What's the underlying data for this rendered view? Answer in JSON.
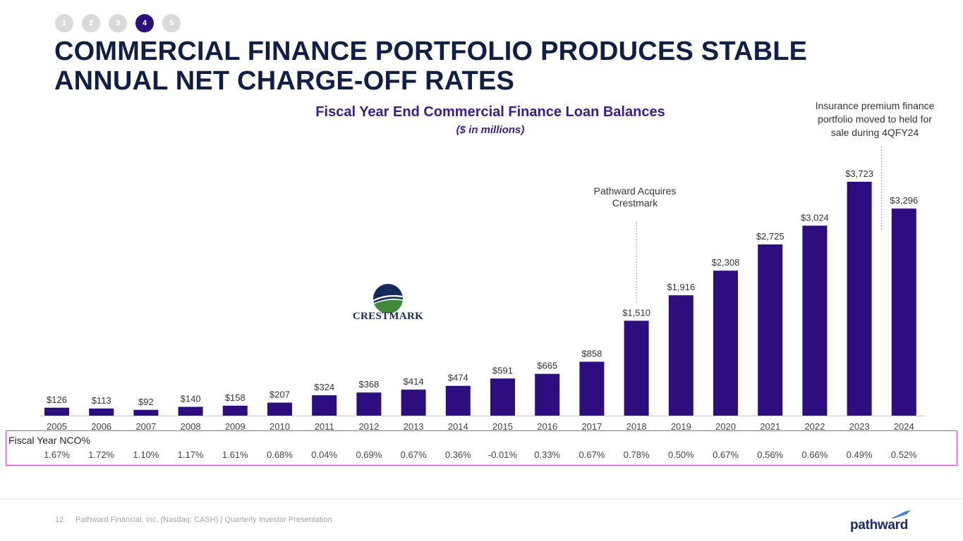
{
  "nav": {
    "steps": [
      "1",
      "2",
      "3",
      "4",
      "5"
    ],
    "active_index": 3
  },
  "slide": {
    "title": "COMMERCIAL FINANCE PORTFOLIO PRODUCES STABLE ANNUAL NET CHARGE-OFF RATES"
  },
  "chart_data": {
    "type": "bar",
    "title": "Fiscal Year End Commercial Finance Loan Balances",
    "subtitle": "($ in millions)",
    "categories": [
      "2005",
      "2006",
      "2007",
      "2008",
      "2009",
      "2010",
      "2011",
      "2012",
      "2013",
      "2014",
      "2015",
      "2016",
      "2017",
      "2018",
      "2019",
      "2020",
      "2021",
      "2022",
      "2023",
      "2024"
    ],
    "values": [
      126,
      113,
      92,
      140,
      158,
      207,
      324,
      368,
      414,
      474,
      591,
      665,
      858,
      1510,
      1916,
      2308,
      2725,
      3024,
      3723,
      3296
    ],
    "value_labels": [
      "$126",
      "$113",
      "$92",
      "$140",
      "$158",
      "$207",
      "$324",
      "$368",
      "$414",
      "$474",
      "$591",
      "$665",
      "$858",
      "$1,510",
      "$1,916",
      "$2,308",
      "$2,725",
      "$3,024",
      "$3,723",
      "$3,296"
    ],
    "ylim": [
      0,
      3723
    ],
    "grid": false,
    "bar_color": "#2e0d7e",
    "annotations": [
      {
        "text_lines": [
          "Pathward Acquires",
          "Crestmark"
        ],
        "category": "2018"
      },
      {
        "text_lines": [
          "Insurance premium finance",
          "portfolio moved to held for",
          "sale during 4QFY24"
        ],
        "category": "2023/2024"
      }
    ],
    "nco": {
      "label": "Fiscal Year NCO%",
      "values": [
        "1.67%",
        "1.72%",
        "1.10%",
        "1.17%",
        "1.61%",
        "0.68%",
        "0.04%",
        "0.69%",
        "0.67%",
        "0.36%",
        "-0.01%",
        "0.33%",
        "0.67%",
        "0.78%",
        "0.50%",
        "0.67%",
        "0.56%",
        "0.66%",
        "0.49%",
        "0.52%"
      ]
    }
  },
  "crestmark_logo": {
    "text": "CRESTMARK"
  },
  "footer": {
    "page_number": "12",
    "text": "Pathward Financial, Inc. (Nasdaq: CASH) | Quarterly Investor Presentation",
    "logo_text": "pathward"
  },
  "colors": {
    "accent": "#2e0d7e",
    "title": "#0f1f45",
    "highlight_box": "#e23bd3"
  }
}
